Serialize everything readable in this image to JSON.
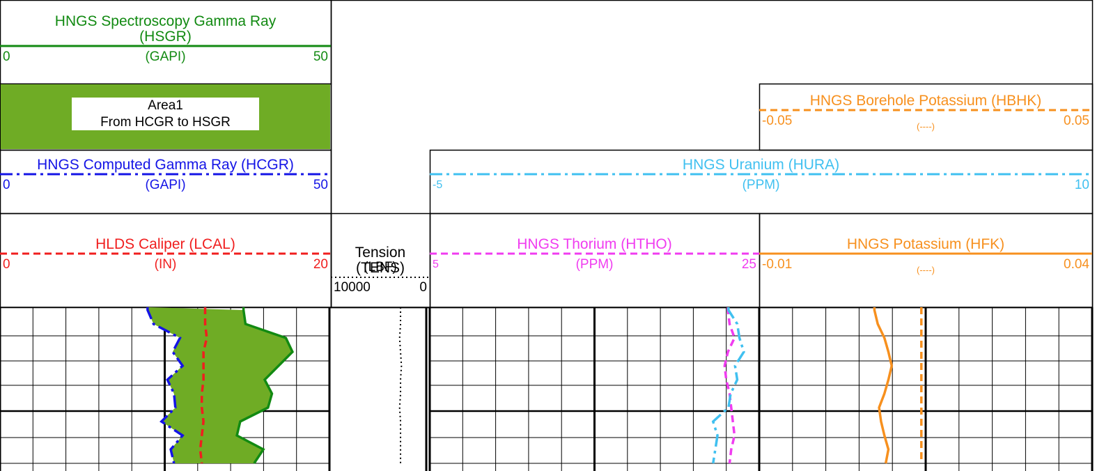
{
  "chart_data": {
    "type": "well-log",
    "area_label": {
      "title": "Area1",
      "text": "From HCGR to HSGR"
    },
    "series": [
      {
        "name": "HNGS Spectroscopy Gamma Ray (HSGR)",
        "unit": "(GAPI)",
        "scale": [
          0,
          50
        ],
        "color": "#128a12",
        "style": "solid",
        "values": [
          36.8,
          37.1,
          43.2,
          44.2,
          42.1,
          40.0,
          41.1,
          40.5,
          36.3,
          35.8,
          39.8,
          38.4
        ]
      },
      {
        "name": "HNGS Computed Gamma Ray (HCGR)",
        "unit": "(GAPI)",
        "scale": [
          0,
          50
        ],
        "color": "#1414e6",
        "style": "dash-dot",
        "values": [
          22.3,
          23.2,
          27.2,
          26.1,
          27.6,
          25.3,
          26.3,
          26.5,
          24.4,
          27.6,
          25.8,
          26.3
        ]
      },
      {
        "name": "HLDS Caliper (LCAL)",
        "unit": "(IN)",
        "scale": [
          0,
          20
        ],
        "color": "#f01e1e",
        "style": "dashed",
        "values": [
          12.4,
          12.4,
          12.5,
          12.3,
          12.3,
          12.3,
          12.2,
          12.2,
          12.3,
          12.2,
          12.1,
          12.2
        ]
      },
      {
        "name": "Tension (TENS)",
        "unit": "(LBF)",
        "scale": [
          10000,
          0
        ],
        "color": "#000000",
        "style": "dotted",
        "values": [
          2800,
          2800,
          2900,
          2800,
          2700,
          2800,
          2800,
          2900,
          2800,
          2800,
          2800,
          2800
        ]
      },
      {
        "name": "HNGS Thorium (HTHO)",
        "unit": "(PPM)",
        "scale": [
          5,
          25
        ],
        "color": "#f03cf0",
        "style": "dashed",
        "values": [
          23.1,
          23.2,
          23.5,
          23.1,
          22.9,
          23.0,
          23.2,
          23.3,
          23.4,
          23.5,
          23.3,
          23.2
        ]
      },
      {
        "name": "HNGS Potassium (HFK)",
        "unit": "(----)",
        "scale": [
          -0.01,
          0.04
        ],
        "color": "#f7901e",
        "style": "solid",
        "values": [
          0.0073,
          0.0078,
          0.0088,
          0.0094,
          0.0099,
          0.0094,
          0.0088,
          0.008,
          0.0083,
          0.0088,
          0.0094,
          0.009
        ]
      },
      {
        "name": "HNGS Uranium (HURA)",
        "unit": "(PPM)",
        "scale": [
          -5,
          10
        ],
        "color": "#40c0f0",
        "style": "dash-dot",
        "values": [
          8.6,
          9.0,
          9.1,
          9.3,
          8.9,
          9.0,
          8.7,
          8.6,
          7.9,
          8.1,
          8.0,
          7.9
        ]
      },
      {
        "name": "HNGS Borehole Potassium (HBHK)",
        "unit": "(----)",
        "scale": [
          -0.05,
          0.05
        ],
        "color": "#f7901e",
        "style": "dashed",
        "values": [
          -0.0013,
          -0.0013,
          -0.0013,
          -0.0013,
          -0.0013,
          -0.0013,
          -0.0013,
          -0.0013,
          -0.0013,
          -0.0013,
          -0.0013,
          -0.0013
        ]
      }
    ]
  }
}
